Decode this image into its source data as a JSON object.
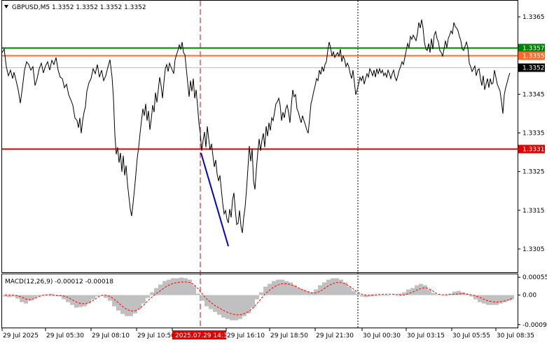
{
  "header": {
    "symbol_line": "GBPUSD,M5  1.3352 1.3352 1.3352 1.3352",
    "dropdown_icon": "triangle-down-icon"
  },
  "main_chart": {
    "price_ticks": [
      "1.3365",
      "1.3355",
      "1.3345",
      "1.3335",
      "1.3325",
      "1.3315",
      "1.3305"
    ],
    "price_tick_values": [
      1.3365,
      1.3355,
      1.3345,
      1.3335,
      1.3325,
      1.3315,
      1.3305
    ],
    "price_range": [
      1.3299,
      1.3369
    ],
    "levels": [
      {
        "label": "1.3357",
        "value": 1.3357,
        "color": "#008000"
      },
      {
        "label": "1.3355",
        "value": 1.3355,
        "color": "#ff6a2a"
      },
      {
        "label": "1.3352",
        "value": 1.3352,
        "color": "#c0c0c0",
        "current": true
      },
      {
        "label": "1.3331",
        "value": 1.3331,
        "color": "#e00000"
      }
    ],
    "trend_line_color": "#0000d0",
    "series_color": "#000000"
  },
  "macd": {
    "label": "MACD(12,26,9) -0.00012 -0.00018",
    "ticks": [
      "0.00055",
      "0.00",
      "-0.00091"
    ],
    "tick_values": [
      0.00055,
      0.0,
      -0.00091
    ],
    "hist_color": "#c0c0c0",
    "signal_color": "#ff0000"
  },
  "time_axis": {
    "labels": [
      "29 Jul 2025",
      "29 Jul 05:30",
      "29 Jul 08:10",
      "29 Jul 10:50",
      "2025.07.29 14:35",
      "29 Jul 16:10",
      "29 Jul 18:50",
      "29 Jul 21:30",
      "30 Jul 00:30",
      "30 Jul 03:15",
      "30 Jul 05:55",
      "30 Jul 08:35"
    ],
    "highlight_label": "2025.07.29 14:35",
    "highlight_color": "#e00000"
  }
}
